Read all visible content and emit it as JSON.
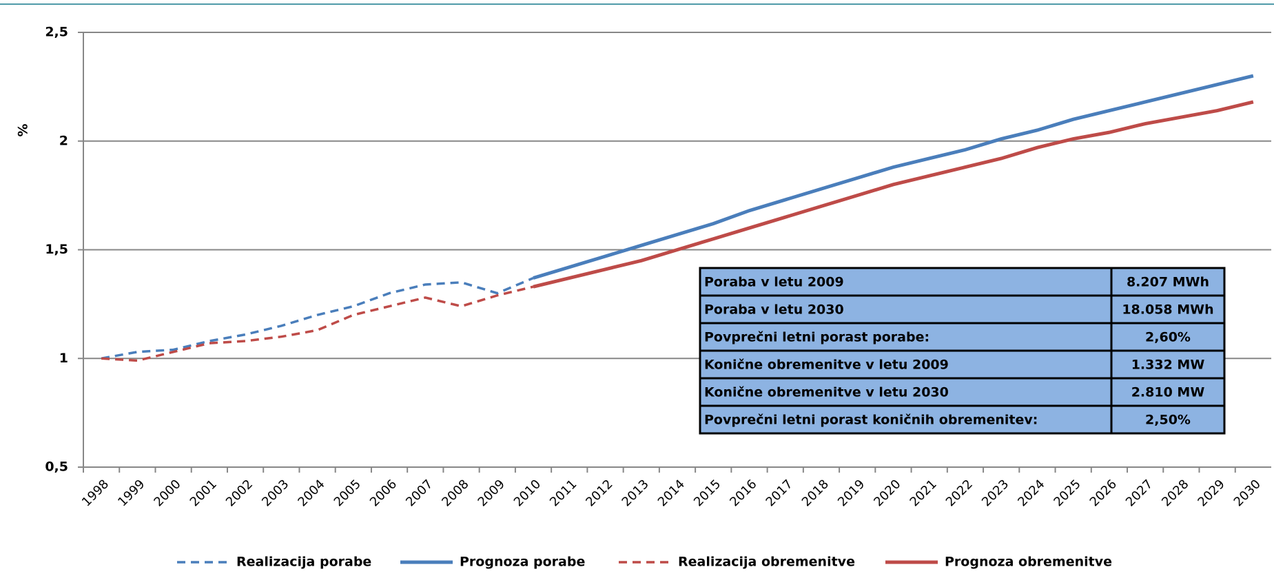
{
  "chart_data": {
    "type": "line",
    "y_label": "%",
    "categories": [
      "1998",
      "1999",
      "2000",
      "2001",
      "2002",
      "2003",
      "2004",
      "2005",
      "2006",
      "2007",
      "2008",
      "2009",
      "2010",
      "2011",
      "2012",
      "2013",
      "2014",
      "2015",
      "2016",
      "2017",
      "2018",
      "2019",
      "2020",
      "2021",
      "2022",
      "2023",
      "2024",
      "2025",
      "2026",
      "2027",
      "2028",
      "2029",
      "2030"
    ],
    "ylim": [
      0.5,
      2.5
    ],
    "yticks": [
      {
        "value": 0.5,
        "label": "0,5"
      },
      1,
      {
        "value": 1.5,
        "label": "1,5"
      },
      2,
      {
        "value": 2.5,
        "label": "2,5"
      }
    ],
    "grid": true,
    "legend": "bottom",
    "series": [
      {
        "name": "Realizacija porabe",
        "color": "#4a7ebb",
        "dashed": true,
        "values": [
          1.0,
          1.03,
          1.04,
          1.08,
          1.11,
          1.15,
          1.2,
          1.24,
          1.3,
          1.34,
          1.35,
          1.3,
          1.37,
          null,
          null,
          null,
          null,
          null,
          null,
          null,
          null,
          null,
          null,
          null,
          null,
          null,
          null,
          null,
          null,
          null,
          null,
          null,
          null
        ]
      },
      {
        "name": "Prognoza porabe",
        "color": "#4a7ebb",
        "dashed": false,
        "values": [
          null,
          null,
          null,
          null,
          null,
          null,
          null,
          null,
          null,
          null,
          null,
          null,
          1.37,
          1.42,
          1.47,
          1.52,
          1.57,
          1.62,
          1.68,
          1.73,
          1.78,
          1.83,
          1.88,
          1.92,
          1.96,
          2.01,
          2.05,
          2.1,
          2.14,
          2.18,
          2.22,
          2.26,
          2.3
        ]
      },
      {
        "name": "Realizacija obremenitve",
        "color": "#be4b48",
        "dashed": true,
        "values": [
          1.0,
          0.99,
          1.03,
          1.07,
          1.08,
          1.1,
          1.13,
          1.2,
          1.24,
          1.28,
          1.24,
          1.29,
          1.33,
          null,
          null,
          null,
          null,
          null,
          null,
          null,
          null,
          null,
          null,
          null,
          null,
          null,
          null,
          null,
          null,
          null,
          null,
          null,
          null
        ]
      },
      {
        "name": "Prognoza obremenitve",
        "color": "#be4b48",
        "dashed": false,
        "values": [
          null,
          null,
          null,
          null,
          null,
          null,
          null,
          null,
          null,
          null,
          null,
          null,
          1.33,
          1.37,
          1.41,
          1.45,
          1.5,
          1.55,
          1.6,
          1.65,
          1.7,
          1.75,
          1.8,
          1.84,
          1.88,
          1.92,
          1.97,
          2.01,
          2.04,
          2.08,
          2.11,
          2.14,
          2.18
        ]
      }
    ],
    "table": {
      "rows": [
        [
          "Poraba v letu 2009",
          "8.207 MWh"
        ],
        [
          "Poraba v letu 2030",
          "18.058 MWh"
        ],
        [
          "Povprečni letni porast porabe:",
          "2,60%"
        ],
        [
          "Konične obremenitve v letu 2009",
          "1.332 MW"
        ],
        [
          "Konične obremenitve v letu 2030",
          "2.810 MW"
        ],
        [
          "Povprečni letni porast koničnih obremenitev:",
          "2,50%"
        ]
      ]
    }
  }
}
